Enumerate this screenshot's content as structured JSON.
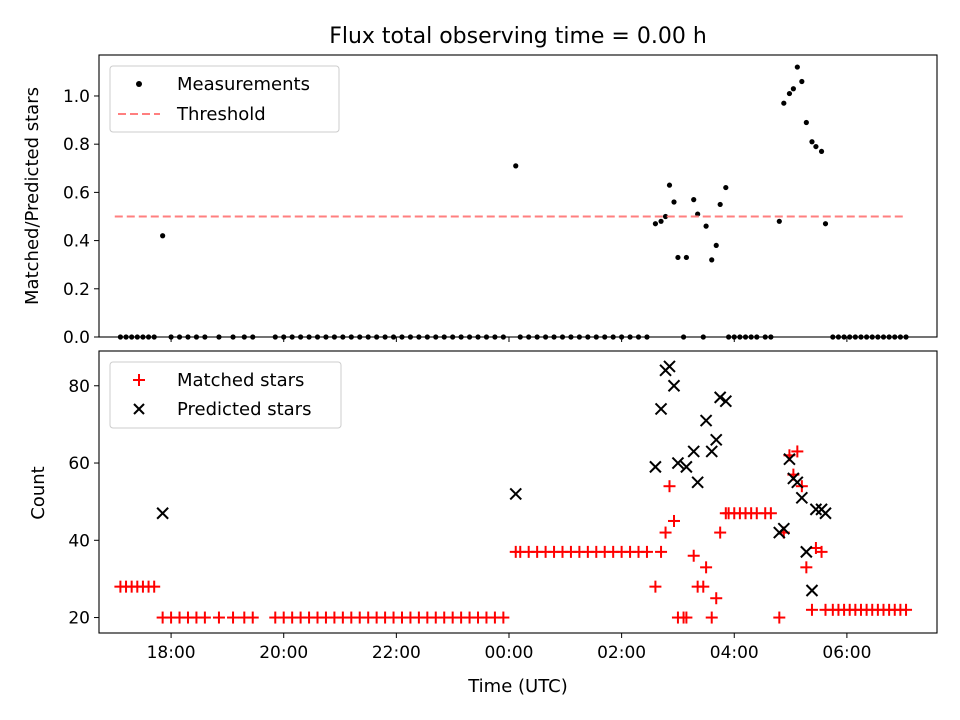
{
  "title": "Flux total observing time = 0.00 h",
  "xlabel": "Time (UTC)",
  "x_tick_labels": [
    "18:00",
    "20:00",
    "22:00",
    "00:00",
    "02:00",
    "04:00",
    "06:00"
  ],
  "chart_data": [
    {
      "type": "scatter",
      "ylabel": "Matched/Predicted stars",
      "xlim": [
        16.72,
        31.6
      ],
      "ylim": [
        0.0,
        1.17
      ],
      "y_ticks": [
        0.0,
        0.2,
        0.4,
        0.6,
        0.8,
        1.0
      ],
      "y_tick_labels": [
        "0.0",
        "0.2",
        "0.4",
        "0.6",
        "0.8",
        "1.0"
      ],
      "legend_position": "top-left",
      "series": [
        {
          "name": "Measurements",
          "marker": "dot",
          "color": "#000000",
          "points": [
            [
              17.1,
              0
            ],
            [
              17.2,
              0
            ],
            [
              17.3,
              0
            ],
            [
              17.4,
              0
            ],
            [
              17.5,
              0
            ],
            [
              17.6,
              0
            ],
            [
              17.7,
              0
            ],
            [
              17.85,
              0.42
            ],
            [
              18.0,
              0
            ],
            [
              18.15,
              0
            ],
            [
              18.3,
              0
            ],
            [
              18.45,
              0
            ],
            [
              18.6,
              0
            ],
            [
              18.85,
              0
            ],
            [
              19.1,
              0
            ],
            [
              19.3,
              0
            ],
            [
              19.45,
              0
            ],
            [
              19.85,
              0
            ],
            [
              20.0,
              0
            ],
            [
              20.15,
              0
            ],
            [
              20.3,
              0
            ],
            [
              20.45,
              0
            ],
            [
              20.6,
              0
            ],
            [
              20.75,
              0
            ],
            [
              20.9,
              0
            ],
            [
              21.05,
              0
            ],
            [
              21.2,
              0
            ],
            [
              21.35,
              0
            ],
            [
              21.5,
              0
            ],
            [
              21.65,
              0
            ],
            [
              21.8,
              0
            ],
            [
              21.95,
              0
            ],
            [
              22.1,
              0
            ],
            [
              22.25,
              0
            ],
            [
              22.4,
              0
            ],
            [
              22.55,
              0
            ],
            [
              22.7,
              0
            ],
            [
              22.85,
              0
            ],
            [
              23.0,
              0
            ],
            [
              23.15,
              0
            ],
            [
              23.3,
              0
            ],
            [
              23.45,
              0
            ],
            [
              23.6,
              0
            ],
            [
              23.75,
              0
            ],
            [
              23.9,
              0
            ],
            [
              24.12,
              0.71
            ],
            [
              24.2,
              0
            ],
            [
              24.35,
              0
            ],
            [
              24.5,
              0
            ],
            [
              24.65,
              0
            ],
            [
              24.8,
              0
            ],
            [
              24.95,
              0
            ],
            [
              25.1,
              0
            ],
            [
              25.25,
              0
            ],
            [
              25.4,
              0
            ],
            [
              25.55,
              0
            ],
            [
              25.7,
              0
            ],
            [
              25.85,
              0
            ],
            [
              26.0,
              0
            ],
            [
              26.15,
              0
            ],
            [
              26.3,
              0
            ],
            [
              26.45,
              0
            ],
            [
              26.6,
              0.47
            ],
            [
              26.7,
              0.48
            ],
            [
              26.78,
              0.5
            ],
            [
              26.85,
              0.63
            ],
            [
              26.93,
              0.56
            ],
            [
              27.0,
              0.33
            ],
            [
              27.1,
              0
            ],
            [
              27.15,
              0.33
            ],
            [
              27.28,
              0.57
            ],
            [
              27.35,
              0.51
            ],
            [
              27.45,
              0
            ],
            [
              27.5,
              0.46
            ],
            [
              27.6,
              0.32
            ],
            [
              27.68,
              0.38
            ],
            [
              27.75,
              0.55
            ],
            [
              27.85,
              0.62
            ],
            [
              27.9,
              0
            ],
            [
              28.0,
              0
            ],
            [
              28.1,
              0
            ],
            [
              28.2,
              0
            ],
            [
              28.3,
              0
            ],
            [
              28.4,
              0
            ],
            [
              28.55,
              0
            ],
            [
              28.65,
              0
            ],
            [
              28.8,
              0.48
            ],
            [
              28.88,
              0.97
            ],
            [
              28.98,
              1.01
            ],
            [
              29.05,
              1.03
            ],
            [
              29.12,
              1.12
            ],
            [
              29.2,
              1.06
            ],
            [
              29.28,
              0.89
            ],
            [
              29.38,
              0.81
            ],
            [
              29.45,
              0.79
            ],
            [
              29.55,
              0.77
            ],
            [
              29.62,
              0.47
            ],
            [
              29.75,
              0
            ],
            [
              29.85,
              0
            ],
            [
              29.95,
              0
            ],
            [
              30.05,
              0
            ],
            [
              30.15,
              0
            ],
            [
              30.25,
              0
            ],
            [
              30.35,
              0
            ],
            [
              30.45,
              0
            ],
            [
              30.55,
              0
            ],
            [
              30.65,
              0
            ],
            [
              30.75,
              0
            ],
            [
              30.85,
              0
            ],
            [
              30.95,
              0
            ],
            [
              31.05,
              0
            ]
          ]
        },
        {
          "name": "Threshold",
          "marker": "dashed-line",
          "color": "#ff7f7f",
          "points": [
            [
              17.0,
              0.5
            ],
            [
              31.0,
              0.5
            ]
          ]
        }
      ]
    },
    {
      "type": "scatter",
      "ylabel": "Count",
      "xlim": [
        16.72,
        31.6
      ],
      "ylim": [
        16,
        89
      ],
      "y_ticks": [
        20,
        40,
        60,
        80
      ],
      "y_tick_labels": [
        "20",
        "40",
        "60",
        "80"
      ],
      "legend_position": "top-left",
      "series": [
        {
          "name": "Matched stars",
          "marker": "plus",
          "color": "#ff0000",
          "points": [
            [
              17.1,
              28
            ],
            [
              17.2,
              28
            ],
            [
              17.3,
              28
            ],
            [
              17.4,
              28
            ],
            [
              17.5,
              28
            ],
            [
              17.6,
              28
            ],
            [
              17.7,
              28
            ],
            [
              17.85,
              20
            ],
            [
              18.0,
              20
            ],
            [
              18.15,
              20
            ],
            [
              18.3,
              20
            ],
            [
              18.45,
              20
            ],
            [
              18.6,
              20
            ],
            [
              18.85,
              20
            ],
            [
              19.1,
              20
            ],
            [
              19.3,
              20
            ],
            [
              19.45,
              20
            ],
            [
              19.85,
              20
            ],
            [
              20.0,
              20
            ],
            [
              20.15,
              20
            ],
            [
              20.3,
              20
            ],
            [
              20.45,
              20
            ],
            [
              20.6,
              20
            ],
            [
              20.75,
              20
            ],
            [
              20.9,
              20
            ],
            [
              21.05,
              20
            ],
            [
              21.2,
              20
            ],
            [
              21.35,
              20
            ],
            [
              21.5,
              20
            ],
            [
              21.65,
              20
            ],
            [
              21.8,
              20
            ],
            [
              21.95,
              20
            ],
            [
              22.1,
              20
            ],
            [
              22.25,
              20
            ],
            [
              22.4,
              20
            ],
            [
              22.55,
              20
            ],
            [
              22.7,
              20
            ],
            [
              22.85,
              20
            ],
            [
              23.0,
              20
            ],
            [
              23.15,
              20
            ],
            [
              23.3,
              20
            ],
            [
              23.45,
              20
            ],
            [
              23.6,
              20
            ],
            [
              23.75,
              20
            ],
            [
              23.9,
              20
            ],
            [
              24.12,
              37
            ],
            [
              24.2,
              37
            ],
            [
              24.35,
              37
            ],
            [
              24.5,
              37
            ],
            [
              24.65,
              37
            ],
            [
              24.8,
              37
            ],
            [
              24.95,
              37
            ],
            [
              25.1,
              37
            ],
            [
              25.25,
              37
            ],
            [
              25.4,
              37
            ],
            [
              25.55,
              37
            ],
            [
              25.7,
              37
            ],
            [
              25.85,
              37
            ],
            [
              26.0,
              37
            ],
            [
              26.15,
              37
            ],
            [
              26.3,
              37
            ],
            [
              26.45,
              37
            ],
            [
              26.6,
              28
            ],
            [
              26.7,
              37
            ],
            [
              26.78,
              42
            ],
            [
              26.85,
              54
            ],
            [
              26.93,
              45
            ],
            [
              27.0,
              20
            ],
            [
              27.1,
              20
            ],
            [
              27.15,
              20
            ],
            [
              27.28,
              36
            ],
            [
              27.35,
              28
            ],
            [
              27.45,
              28
            ],
            [
              27.5,
              33
            ],
            [
              27.6,
              20
            ],
            [
              27.68,
              25
            ],
            [
              27.75,
              42
            ],
            [
              27.85,
              47
            ],
            [
              27.9,
              47
            ],
            [
              28.0,
              47
            ],
            [
              28.1,
              47
            ],
            [
              28.2,
              47
            ],
            [
              28.3,
              47
            ],
            [
              28.4,
              47
            ],
            [
              28.55,
              47
            ],
            [
              28.65,
              47
            ],
            [
              28.8,
              20
            ],
            [
              28.88,
              42
            ],
            [
              28.98,
              62
            ],
            [
              29.05,
              57
            ],
            [
              29.12,
              63
            ],
            [
              29.2,
              54
            ],
            [
              29.28,
              33
            ],
            [
              29.38,
              22
            ],
            [
              29.45,
              38
            ],
            [
              29.55,
              37
            ],
            [
              29.62,
              22
            ],
            [
              29.75,
              22
            ],
            [
              29.85,
              22
            ],
            [
              29.95,
              22
            ],
            [
              30.05,
              22
            ],
            [
              30.15,
              22
            ],
            [
              30.25,
              22
            ],
            [
              30.35,
              22
            ],
            [
              30.45,
              22
            ],
            [
              30.55,
              22
            ],
            [
              30.65,
              22
            ],
            [
              30.75,
              22
            ],
            [
              30.85,
              22
            ],
            [
              30.95,
              22
            ],
            [
              31.05,
              22
            ]
          ]
        },
        {
          "name": "Predicted stars",
          "marker": "x",
          "color": "#000000",
          "points": [
            [
              17.85,
              47
            ],
            [
              24.12,
              52
            ],
            [
              26.6,
              59
            ],
            [
              26.7,
              74
            ],
            [
              26.78,
              84
            ],
            [
              26.85,
              85
            ],
            [
              26.93,
              80
            ],
            [
              27.0,
              60
            ],
            [
              27.15,
              59
            ],
            [
              27.28,
              63
            ],
            [
              27.35,
              55
            ],
            [
              27.5,
              71
            ],
            [
              27.6,
              63
            ],
            [
              27.68,
              66
            ],
            [
              27.75,
              77
            ],
            [
              27.85,
              76
            ],
            [
              28.8,
              42
            ],
            [
              28.88,
              43
            ],
            [
              28.98,
              61
            ],
            [
              29.05,
              56
            ],
            [
              29.12,
              55
            ],
            [
              29.2,
              51
            ],
            [
              29.28,
              37
            ],
            [
              29.38,
              27
            ],
            [
              29.45,
              48
            ],
            [
              29.55,
              48
            ],
            [
              29.62,
              47
            ]
          ]
        }
      ]
    }
  ]
}
